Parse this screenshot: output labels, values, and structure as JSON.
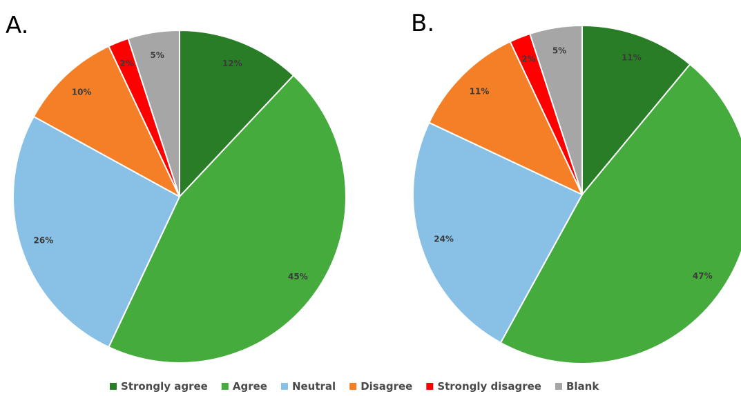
{
  "chart_data": [
    {
      "type": "pie",
      "panel_label": "A.",
      "categories": [
        "Strongly agree",
        "Agree",
        "Neutral",
        "Disagree",
        "Strongly disagree",
        "Blank"
      ],
      "values": [
        12,
        45,
        26,
        10,
        2,
        5
      ],
      "data_labels": [
        "12%",
        "45%",
        "26%",
        "10%",
        "2%",
        "5%"
      ]
    },
    {
      "type": "pie",
      "panel_label": "B.",
      "categories": [
        "Strongly agree",
        "Agree",
        "Neutral",
        "Disagree",
        "Strongly disagree",
        "Blank"
      ],
      "values": [
        11,
        47,
        24,
        11,
        2,
        5
      ],
      "data_labels": [
        "11%",
        "47%",
        "24%",
        "11%",
        "2%",
        "5%"
      ]
    }
  ],
  "legend": {
    "placement": "bottom",
    "items": [
      {
        "label": "Strongly agree",
        "color": "#2a7d27"
      },
      {
        "label": "Agree",
        "color": "#45ab3c"
      },
      {
        "label": "Neutral",
        "color": "#88c1e5"
      },
      {
        "label": "Disagree",
        "color": "#f47f27"
      },
      {
        "label": "Strongly disagree",
        "color": "#ff0000"
      },
      {
        "label": "Blank",
        "color": "#a6a6a6"
      }
    ]
  }
}
